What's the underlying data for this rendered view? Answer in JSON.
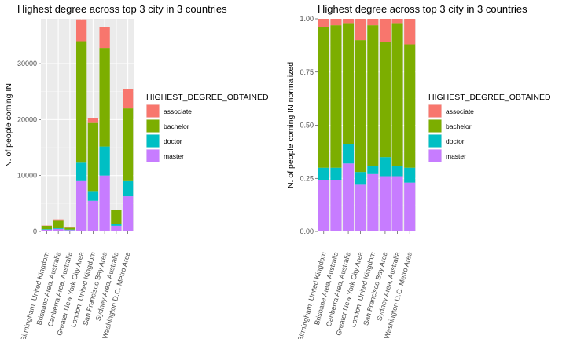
{
  "chart_data": [
    {
      "type": "bar",
      "stacked": true,
      "title": "Highest degree across top 3 city in 3 countries",
      "xlabel": "",
      "ylabel": "N. of people coming IN",
      "ylim": [
        0,
        38000
      ],
      "yticks": [
        0,
        10000,
        20000,
        30000
      ],
      "ytick_labels": [
        "0",
        "10000",
        "20000",
        "30000"
      ],
      "grid": true,
      "legend": {
        "title": "HIGHEST_DEGREE_OBTAINED",
        "position": "right",
        "entries": [
          "associate",
          "bachelor",
          "doctor",
          "master"
        ]
      },
      "categories": [
        "Birmingham, United Kingdom",
        "Brisbane Area, Australia",
        "Canberra Area, Australia",
        "Greater New York City Area",
        "London, United Kingdom",
        "San Francisco Bay Area",
        "Sydney Area, Australia",
        "Washington D.C. Metro Area"
      ],
      "series": [
        {
          "name": "master",
          "color": "#C77CFF",
          "values": [
            300,
            450,
            250,
            9000,
            5500,
            10000,
            1000,
            6300
          ]
        },
        {
          "name": "doctor",
          "color": "#00BFC4",
          "values": [
            100,
            200,
            80,
            3300,
            1600,
            5200,
            300,
            2700
          ]
        },
        {
          "name": "bachelor",
          "color": "#7CAE00",
          "values": [
            600,
            1400,
            450,
            21700,
            12300,
            17600,
            2500,
            13000
          ]
        },
        {
          "name": "associate",
          "color": "#F8766D",
          "values": [
            50,
            100,
            50,
            3900,
            900,
            3700,
            100,
            3500
          ]
        }
      ]
    },
    {
      "type": "bar",
      "stacked": true,
      "title": "Highest degree across top 3 city in 3 countries",
      "xlabel": "",
      "ylabel": "N. of people coming IN normalized",
      "ylim": [
        0,
        1.0
      ],
      "yticks": [
        0,
        0.25,
        0.5,
        0.75,
        1.0
      ],
      "ytick_labels": [
        "0.00",
        "0.25",
        "0.50",
        "0.75",
        "1.00"
      ],
      "grid": true,
      "legend": {
        "title": "HIGHEST_DEGREE_OBTAINED",
        "position": "right",
        "entries": [
          "associate",
          "bachelor",
          "doctor",
          "master"
        ]
      },
      "categories": [
        "Birmingham, United Kingdom",
        "Brisbane Area, Australia",
        "Canberra Area, Australia",
        "Greater New York City Area",
        "London, United Kingdom",
        "San Francisco Bay Area",
        "Sydney Area, Australia",
        "Washington D.C. Metro Area"
      ],
      "series": [
        {
          "name": "master",
          "color": "#C77CFF",
          "values": [
            0.24,
            0.24,
            0.32,
            0.22,
            0.27,
            0.26,
            0.26,
            0.23
          ]
        },
        {
          "name": "doctor",
          "color": "#00BFC4",
          "values": [
            0.06,
            0.06,
            0.09,
            0.06,
            0.04,
            0.09,
            0.05,
            0.07
          ]
        },
        {
          "name": "bachelor",
          "color": "#7CAE00",
          "values": [
            0.66,
            0.67,
            0.57,
            0.62,
            0.66,
            0.54,
            0.67,
            0.58
          ]
        },
        {
          "name": "associate",
          "color": "#F8766D",
          "values": [
            0.04,
            0.03,
            0.02,
            0.1,
            0.03,
            0.11,
            0.02,
            0.12
          ]
        }
      ]
    }
  ]
}
